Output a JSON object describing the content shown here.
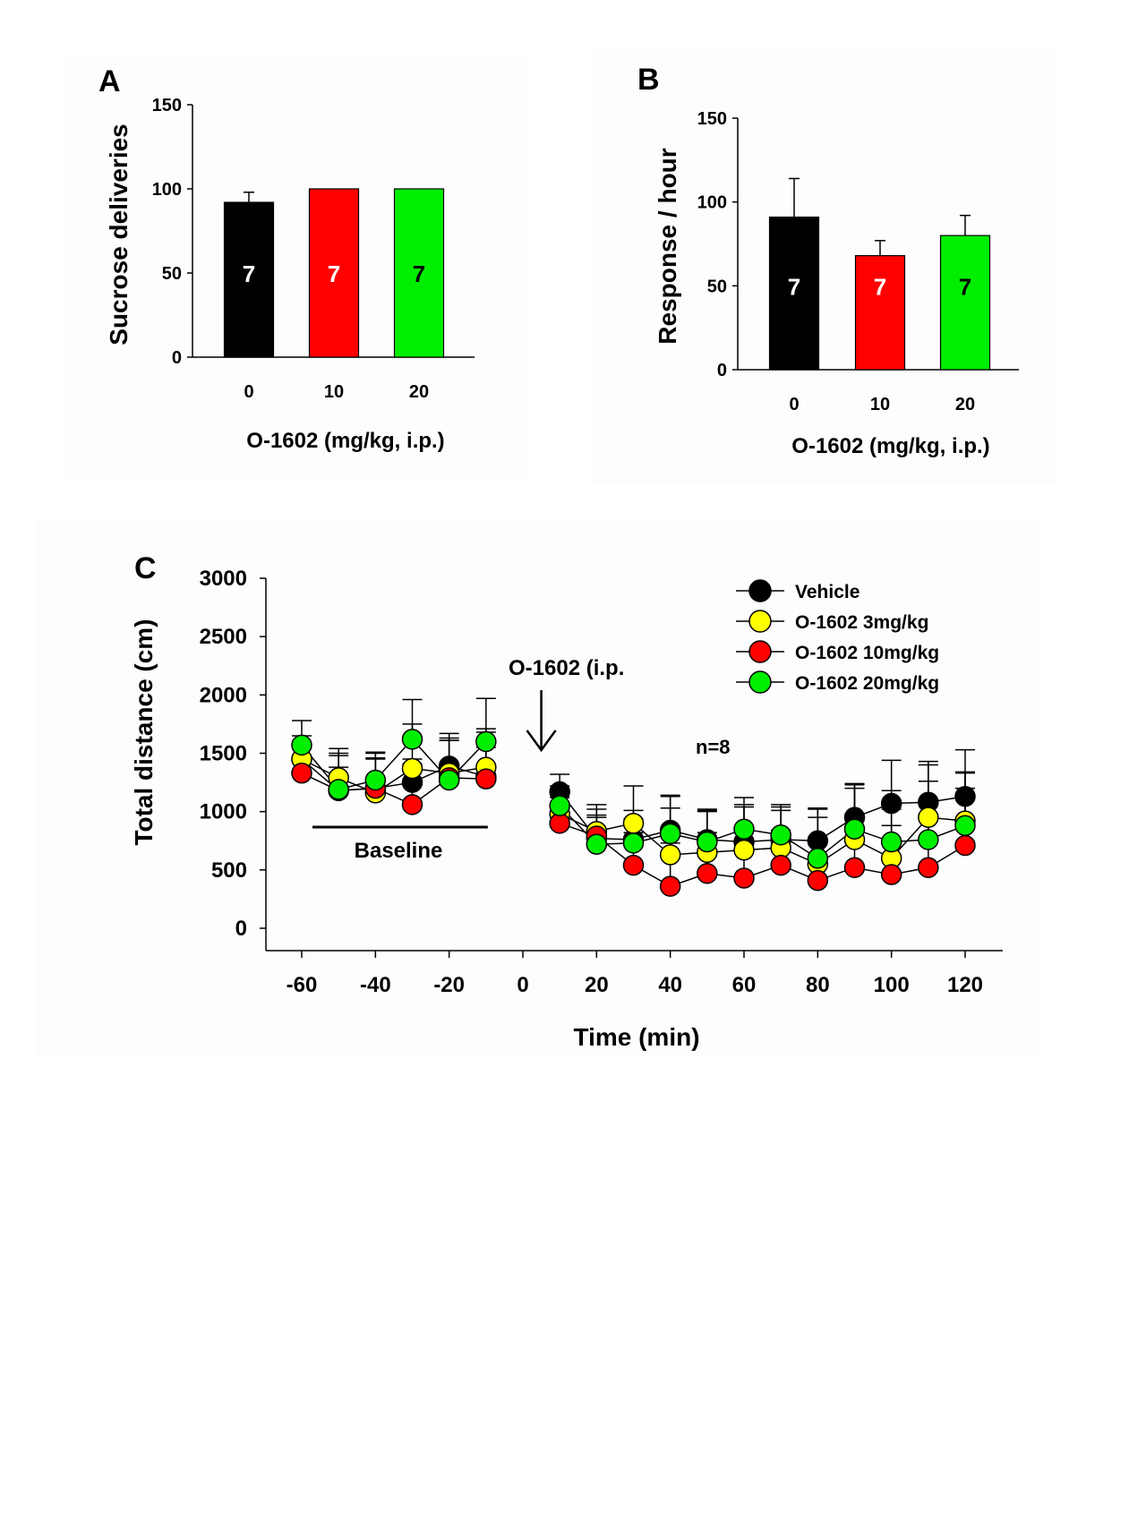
{
  "colors": {
    "black": "#000000",
    "red": "#ff0000",
    "green": "#00ee00",
    "yellow": "#ffff00",
    "white": "#ffffff"
  },
  "chart_data": [
    {
      "panel": "A",
      "type": "bar",
      "title": "",
      "ylabel": "Sucrose deliveries",
      "xlabel": "O-1602 (mg/kg, i.p.)",
      "ylim": [
        0,
        150
      ],
      "yticks": [
        0,
        50,
        100,
        150
      ],
      "categories": [
        "0",
        "10",
        "20"
      ],
      "values": [
        92,
        100,
        100
      ],
      "errors": [
        6,
        0,
        0
      ],
      "bar_colors": [
        "#000000",
        "#ff0000",
        "#00ee00"
      ],
      "bar_labels": [
        "7",
        "7",
        "7"
      ],
      "bar_label_colors": [
        "#ffffff",
        "#ffffff",
        "#000000"
      ]
    },
    {
      "panel": "B",
      "type": "bar",
      "title": "",
      "ylabel": "Response / hour",
      "xlabel": "O-1602 (mg/kg, i.p.)",
      "ylim": [
        0,
        150
      ],
      "yticks": [
        0,
        50,
        100,
        150
      ],
      "categories": [
        "0",
        "10",
        "20"
      ],
      "values": [
        91,
        68,
        80
      ],
      "errors": [
        23,
        9,
        12
      ],
      "bar_colors": [
        "#000000",
        "#ff0000",
        "#00ee00"
      ],
      "bar_labels": [
        "7",
        "7",
        "7"
      ],
      "bar_label_colors": [
        "#ffffff",
        "#ffffff",
        "#000000"
      ]
    },
    {
      "panel": "C",
      "type": "line",
      "title": "",
      "ylabel": "Total distance (cm)",
      "xlabel": "Time (min)",
      "ylim": [
        0,
        3000
      ],
      "yticks": [
        0,
        500,
        1000,
        1500,
        2000,
        2500,
        3000
      ],
      "xlim": [
        -60,
        120
      ],
      "xticks": [
        -60,
        -40,
        -20,
        0,
        20,
        40,
        60,
        80,
        100,
        120
      ],
      "grid": false,
      "legend_position": "top-right",
      "annotations": {
        "injection_label": "O-1602 (i.p.",
        "sample_size": "n=8",
        "baseline_label": "Baseline",
        "baseline_range": [
          -60,
          -10
        ],
        "injection_time": 5
      },
      "x_pre": [
        -60,
        -50,
        -40,
        -30,
        -20,
        -10
      ],
      "x_post": [
        10,
        20,
        30,
        40,
        50,
        60,
        70,
        80,
        90,
        100,
        110,
        120
      ],
      "series": [
        {
          "name": "Vehicle",
          "color": "#000000",
          "pre": [
            1450,
            1180,
            1200,
            1250,
            1390,
            1300
          ],
          "post": [
            1170,
            770,
            760,
            840,
            760,
            740,
            760,
            750,
            950,
            1070,
            1080,
            1130
          ],
          "err_pre": [
            150,
            200,
            300,
            200,
            280,
            250
          ],
          "err_post": [
            150,
            200,
            180,
            300,
            250,
            300,
            250,
            280,
            280,
            370,
            350,
            400
          ]
        },
        {
          "name": "O-1602 3mg/kg",
          "color": "#ffff00",
          "pre": [
            1450,
            1290,
            1160,
            1370,
            1330,
            1380
          ],
          "post": [
            980,
            830,
            900,
            630,
            650,
            670,
            690,
            550,
            760,
            600,
            950,
            920
          ],
          "err_pre": [
            200,
            250,
            300,
            380,
            280,
            330
          ],
          "err_post": [
            200,
            230,
            320,
            400,
            350,
            390,
            350,
            400,
            440,
            420,
            450,
            420
          ]
        },
        {
          "name": "O-1602 10mg/kg",
          "color": "#ff0000",
          "pre": [
            1330,
            1180,
            1200,
            1060,
            1290,
            1280
          ],
          "post": [
            900,
            790,
            540,
            360,
            470,
            430,
            540,
            410,
            520,
            460,
            520,
            710
          ],
          "err_pre": [
            250,
            300,
            250,
            350,
            320,
            400
          ],
          "err_post": [
            220,
            230,
            280,
            370,
            350,
            340,
            300,
            350,
            400,
            420,
            460,
            490
          ]
        },
        {
          "name": "O-1602 20mg/kg",
          "color": "#00ee00",
          "pre": [
            1570,
            1190,
            1270,
            1620,
            1270,
            1600
          ],
          "post": [
            1050,
            720,
            730,
            810,
            740,
            850,
            800,
            600,
            850,
            740,
            760,
            880
          ],
          "err_pre": [
            210,
            310,
            240,
            340,
            360,
            370
          ],
          "err_post": [
            170,
            230,
            280,
            320,
            280,
            270,
            260,
            420,
            390,
            440,
            500,
            450
          ]
        }
      ]
    }
  ]
}
